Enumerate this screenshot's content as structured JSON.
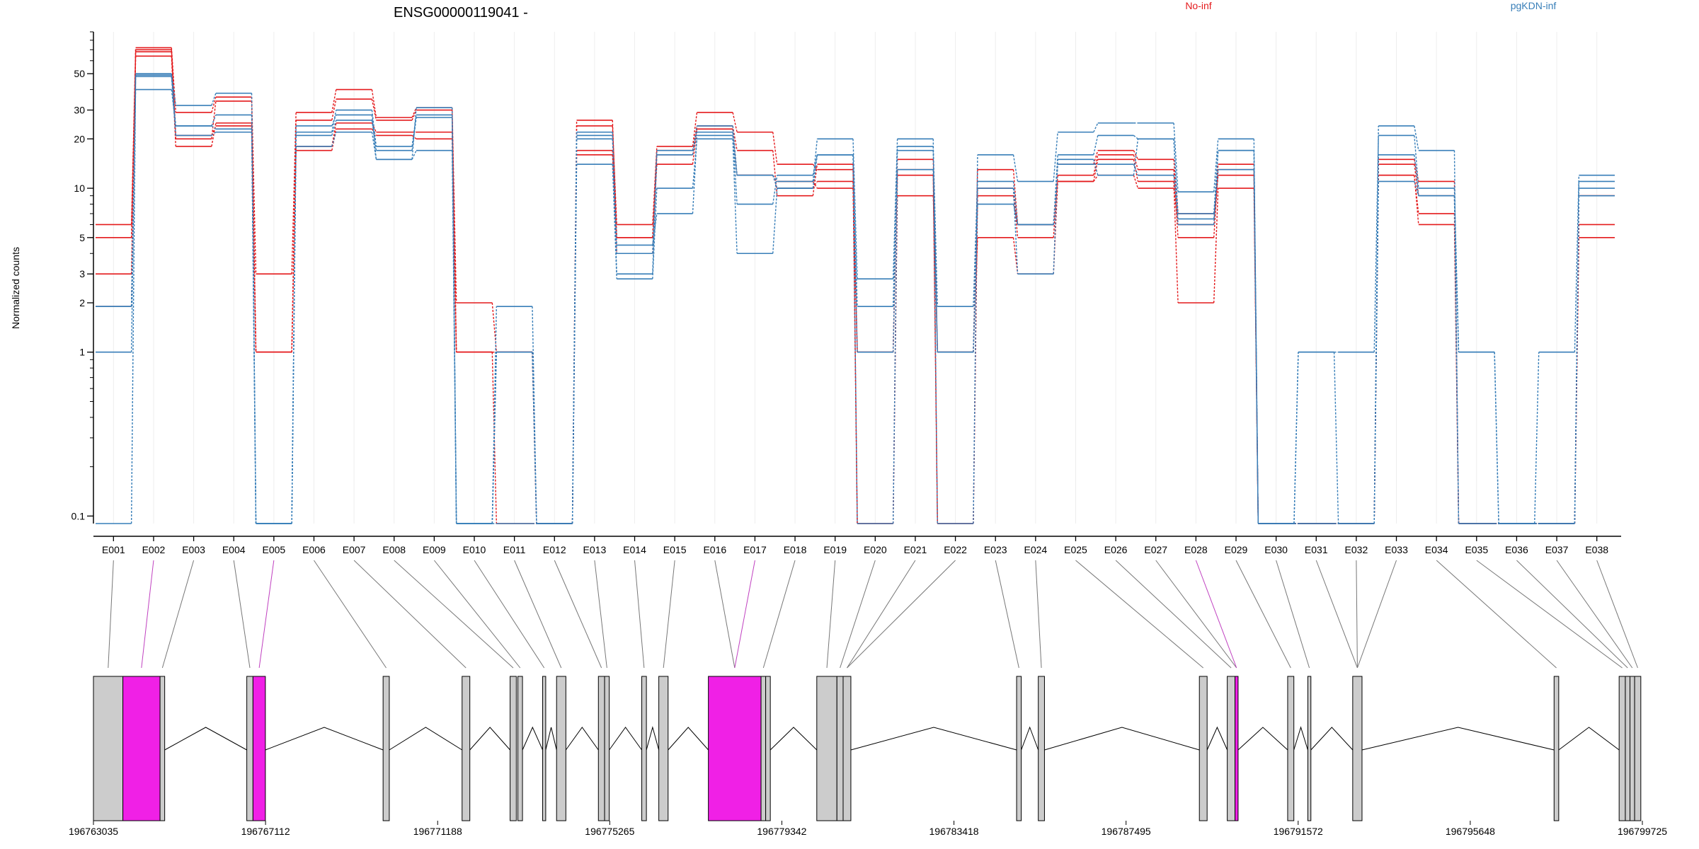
{
  "chart_data": {
    "type": "line",
    "title": "ENSG00000119041 -",
    "ylabel": "Normalized counts",
    "yscale": "log",
    "ylim": [
      0.09,
      90
    ],
    "yticks": [
      0.1,
      1,
      2,
      3,
      5,
      10,
      20,
      30,
      50
    ],
    "legend": [
      {
        "label": "No-inf",
        "color": "#e41a1c"
      },
      {
        "label": "pgKDN-inf",
        "color": "#377eb8"
      }
    ],
    "categories": [
      "E001",
      "E002",
      "E003",
      "E004",
      "E005",
      "E006",
      "E007",
      "E008",
      "E009",
      "E010",
      "E011",
      "E012",
      "E013",
      "E014",
      "E015",
      "E016",
      "E017",
      "E018",
      "E019",
      "E020",
      "E021",
      "E022",
      "E023",
      "E024",
      "E025",
      "E026",
      "E027",
      "E028",
      "E029",
      "E030",
      "E031",
      "E032",
      "E033",
      "E034",
      "E035",
      "E036",
      "E037",
      "E038"
    ],
    "series": [
      {
        "group": "No-inf",
        "values": [
          6,
          72,
          29,
          36,
          3,
          29,
          40,
          27,
          31,
          2,
          1,
          0.09,
          24,
          6,
          18,
          29,
          22,
          14,
          13,
          1,
          15,
          1,
          13,
          6,
          14,
          17,
          15,
          7,
          14,
          0.09,
          0.09,
          0.09,
          15,
          11,
          0.09,
          0.09,
          0.09,
          6
        ]
      },
      {
        "group": "No-inf",
        "values": [
          5,
          68,
          20,
          34,
          1,
          26,
          35,
          26,
          30,
          1,
          1,
          0.09,
          26,
          5,
          17,
          24,
          17,
          9,
          14,
          0.09,
          12,
          0.09,
          10,
          5,
          12,
          16,
          13,
          5,
          13,
          0.09,
          0.09,
          0.09,
          14,
          9,
          0.09,
          0.09,
          0.09,
          5
        ]
      },
      {
        "group": "No-inf",
        "values": [
          3,
          64,
          18,
          25,
          1,
          18,
          25,
          22,
          22,
          1,
          0.09,
          0.09,
          17,
          4,
          16,
          23,
          12,
          10,
          11,
          0.09,
          9,
          1,
          5,
          3,
          11,
          15,
          11,
          2,
          10,
          0.09,
          0.09,
          0.09,
          12,
          6,
          0.09,
          0.09,
          0.09,
          9
        ]
      },
      {
        "group": "No-inf",
        "values": [
          1.9,
          70,
          21,
          24,
          1,
          17,
          23,
          21,
          20,
          1,
          1,
          0.09,
          16,
          5,
          14,
          23,
          12,
          11,
          10,
          1,
          13,
          0.09,
          9,
          6,
          11,
          12,
          10,
          6,
          12,
          0.09,
          0.09,
          0.09,
          12,
          7,
          0.09,
          0.09,
          0.09,
          9
        ]
      },
      {
        "group": "pgKDN-inf",
        "values": [
          1.9,
          49,
          24,
          23,
          0.09,
          22,
          30,
          18,
          28,
          0.09,
          1.9,
          0.09,
          21,
          4,
          17,
          22,
          8,
          12,
          16,
          1.9,
          18,
          1.9,
          11,
          6,
          16,
          21,
          20,
          7,
          17,
          0.09,
          1,
          1,
          21,
          10,
          1,
          0.09,
          1,
          12
        ]
      },
      {
        "group": "pgKDN-inf",
        "values": [
          0.09,
          50,
          32,
          38,
          0.09,
          24,
          28,
          15,
          31,
          0.09,
          0.09,
          0.09,
          22,
          3,
          16,
          24,
          12,
          11,
          20,
          2.8,
          20,
          0.09,
          16,
          11,
          22,
          25,
          25,
          9.5,
          20,
          0.09,
          0.09,
          0.09,
          24,
          17,
          0.09,
          0.09,
          0.09,
          11
        ]
      },
      {
        "group": "pgKDN-inf",
        "values": [
          1.9,
          40,
          24,
          28,
          0.09,
          21,
          26,
          17,
          27,
          0.09,
          1,
          0.09,
          14,
          2.8,
          10,
          20,
          4,
          10,
          16,
          1,
          17,
          1,
          8,
          6,
          14,
          14,
          12,
          6.5,
          13,
          0.09,
          1,
          0.09,
          11,
          9,
          1,
          0.09,
          0.09,
          10
        ]
      },
      {
        "group": "pgKDN-inf",
        "values": [
          1,
          48,
          21,
          22,
          0.09,
          18,
          22,
          15,
          17,
          0.09,
          1,
          0.09,
          20,
          4.5,
          7,
          21,
          12,
          10,
          16,
          0.09,
          13,
          1,
          10,
          3,
          15,
          12,
          20,
          6,
          17,
          0.09,
          0.09,
          0.09,
          16,
          9,
          0.09,
          0.09,
          0.09,
          9
        ]
      }
    ],
    "gene_coordinates": [
      "196763035",
      "196767112",
      "196771188",
      "196775265",
      "196779342",
      "196783418",
      "196787495",
      "196791572",
      "196795648",
      "196799725"
    ],
    "highlighted_exons": [
      "E002",
      "E005",
      "E017",
      "E028"
    ],
    "highlight_color": "#f020e6",
    "exon_color": "#cccccc"
  }
}
